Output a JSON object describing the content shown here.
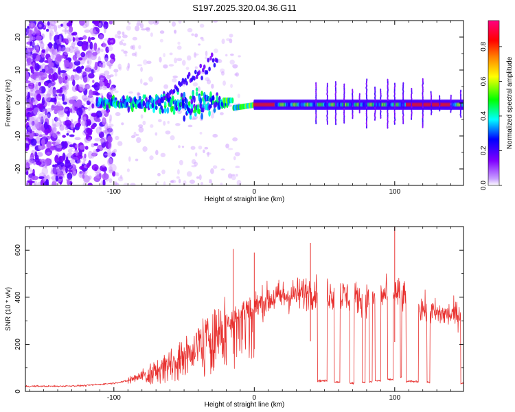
{
  "title": "S197.2025.320.04.36.G11",
  "chart_data": [
    {
      "type": "heatmap",
      "name": "spectrogram",
      "xlabel": "Height of straight line (km)",
      "ylabel": "Frequency (Hz)",
      "xlim": [
        -163,
        149
      ],
      "ylim": [
        -25,
        25
      ],
      "x_ticks": [
        -100,
        0,
        100
      ],
      "y_ticks": [
        -20,
        -10,
        0,
        10,
        20
      ],
      "colorbar": {
        "label": "Normalized spectral amplitude",
        "range": [
          0,
          0.95
        ],
        "ticks": [
          0,
          0.2,
          0.4,
          0.6,
          0.8
        ],
        "colors": [
          "#ffffff",
          "#8000ff",
          "#0000ff",
          "#00ffff",
          "#00ff00",
          "#ffff00",
          "#ff8000",
          "#ff0000",
          "#ff0080"
        ]
      },
      "features": {
        "carrier_frequency_hz": 0,
        "noise_region_x": [
          -163,
          -110
        ],
        "disturbed_region_x": [
          -110,
          -20
        ],
        "oscillation_peak": {
          "x": -30,
          "frequency": 15
        },
        "strong_carrier_x": [
          0,
          149
        ]
      }
    },
    {
      "type": "line",
      "name": "snr",
      "xlabel": "Height of straight line (km)",
      "ylabel": "SNR (10 * v/v)",
      "xlim": [
        -163,
        149
      ],
      "ylim": [
        0,
        700
      ],
      "x_ticks": [
        -100,
        0,
        100
      ],
      "y_ticks": [
        0,
        200,
        400,
        600
      ],
      "color": "#e8312f",
      "series": [
        {
          "name": "SNR",
          "x": [
            -163,
            -140,
            -120,
            -100,
            -90,
            -80,
            -70,
            -60,
            -50,
            -40,
            -30,
            -20,
            -10,
            0,
            10,
            20,
            30,
            40,
            50,
            60,
            70,
            80,
            90,
            100,
            110,
            120,
            130,
            140,
            149
          ],
          "y": [
            22,
            22,
            25,
            35,
            45,
            70,
            95,
            130,
            160,
            210,
            250,
            300,
            340,
            360,
            390,
            405,
            410,
            425,
            420,
            410,
            400,
            395,
            405,
            420,
            390,
            350,
            330,
            325,
            330
          ]
        }
      ],
      "spikes": [
        {
          "x": -15,
          "y": 605
        },
        {
          "x": 0,
          "y": 590
        },
        {
          "x": 40,
          "y": 630
        },
        {
          "x": 100,
          "y": 700
        }
      ],
      "dropouts": [
        {
          "x_start": 45,
          "x_end": 52,
          "y": 45
        },
        {
          "x_start": 57,
          "x_end": 61,
          "y": 40
        },
        {
          "x_start": 68,
          "x_end": 71,
          "y": 35
        },
        {
          "x_start": 77,
          "x_end": 79,
          "y": 38
        },
        {
          "x_start": 82,
          "x_end": 84,
          "y": 40
        },
        {
          "x_start": 86,
          "x_end": 90,
          "y": 45
        },
        {
          "x_start": 95,
          "x_end": 99,
          "y": 50
        },
        {
          "x_start": 104,
          "x_end": 105,
          "y": 60
        },
        {
          "x_start": 108,
          "x_end": 117,
          "y": 42
        },
        {
          "x_start": 123,
          "x_end": 125,
          "y": 38
        },
        {
          "x_start": 147,
          "x_end": 149,
          "y": 35
        }
      ]
    }
  ]
}
